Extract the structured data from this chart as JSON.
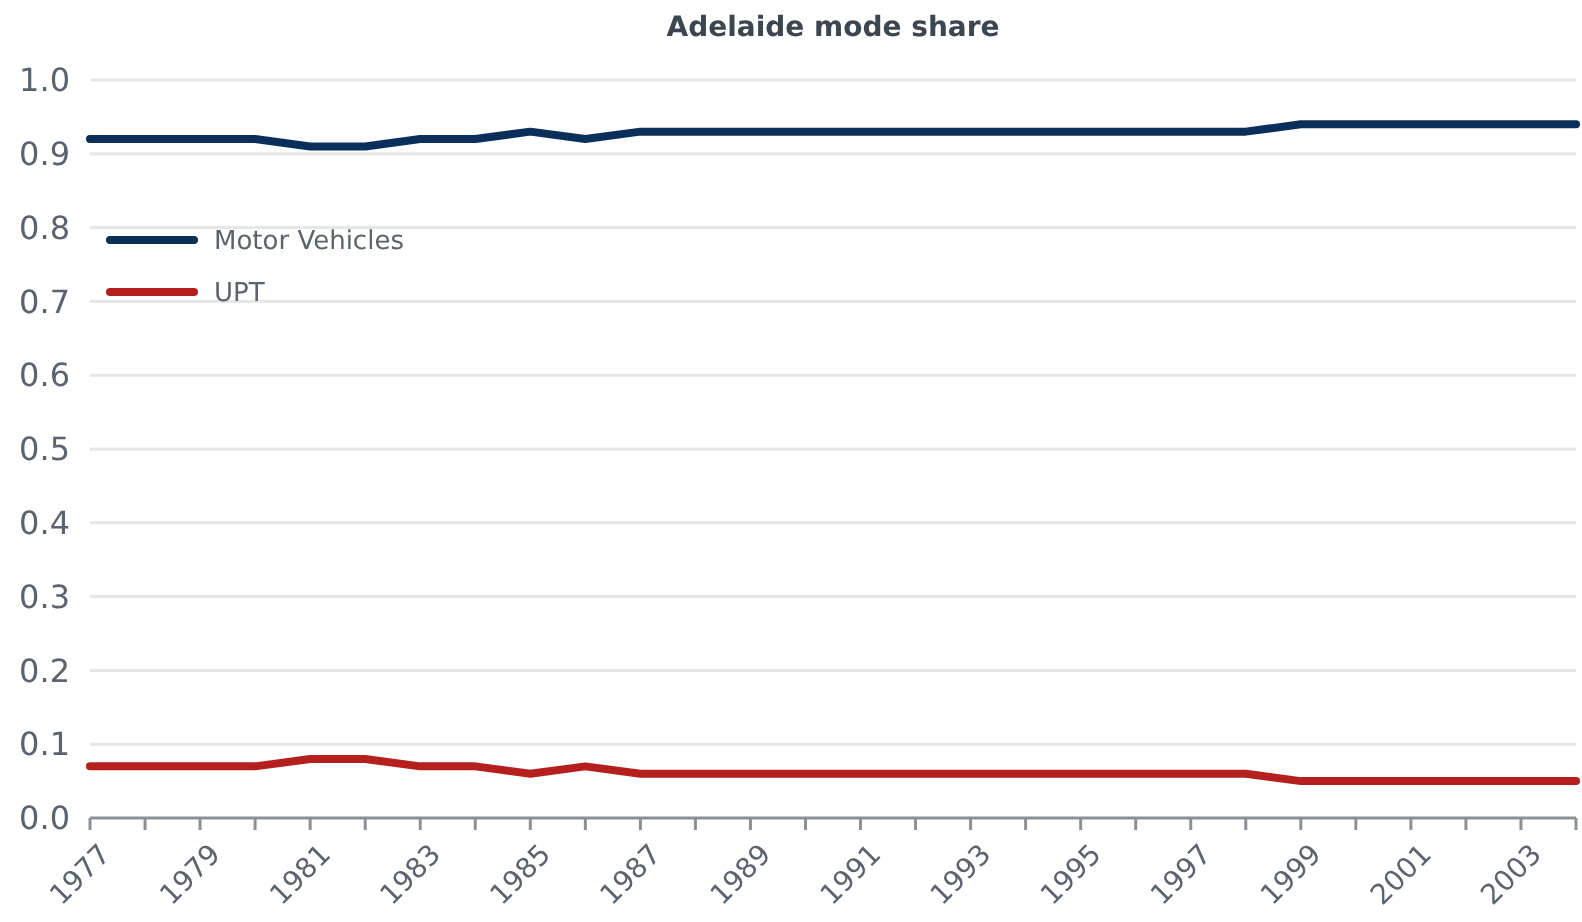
{
  "chart_data": {
    "type": "line",
    "title": "Adelaide mode share",
    "categories": [
      "1977",
      null,
      "1979",
      null,
      "1981",
      null,
      "1983",
      null,
      "1985",
      null,
      "1987",
      null,
      "1989",
      null,
      "1991",
      null,
      "1993",
      null,
      "1995",
      null,
      "1997",
      null,
      "1999",
      null,
      "2001",
      null,
      "2003",
      null
    ],
    "series": [
      {
        "name": "Motor Vehicles",
        "color": "#0b2f5b",
        "values": [
          0.92,
          0.92,
          0.92,
          0.92,
          0.91,
          0.91,
          0.92,
          0.92,
          0.93,
          0.92,
          0.93,
          0.93,
          0.93,
          0.93,
          0.93,
          0.93,
          0.93,
          0.93,
          0.93,
          0.93,
          0.93,
          0.93,
          0.94,
          0.94,
          0.94,
          0.94,
          0.94,
          0.94
        ]
      },
      {
        "name": "UPT",
        "color": "#b5201e",
        "values": [
          0.07,
          0.07,
          0.07,
          0.07,
          0.08,
          0.08,
          0.07,
          0.07,
          0.06,
          0.07,
          0.06,
          0.06,
          0.06,
          0.06,
          0.06,
          0.06,
          0.06,
          0.06,
          0.06,
          0.06,
          0.06,
          0.06,
          0.05,
          0.05,
          0.05,
          0.05,
          0.05,
          0.05
        ]
      }
    ],
    "ylim": [
      0,
      1
    ],
    "yticks": [
      {
        "value": 0,
        "label": "0.0"
      },
      {
        "value": 0.1,
        "label": "0.1"
      },
      {
        "value": 0.2,
        "label": "0.2"
      },
      {
        "value": 0.3,
        "label": "0.3"
      },
      {
        "value": 0.4,
        "label": "0.4"
      },
      {
        "value": 0.5,
        "label": "0.5"
      },
      {
        "value": 0.6,
        "label": "0.6"
      },
      {
        "value": 0.7,
        "label": "0.7"
      },
      {
        "value": 0.8,
        "label": "0.8"
      },
      {
        "value": 0.9,
        "label": "0.9"
      },
      {
        "value": 1,
        "label": "1.0"
      }
    ],
    "grid": "y",
    "legend": "left",
    "marker": "none",
    "line_style": "solid"
  }
}
